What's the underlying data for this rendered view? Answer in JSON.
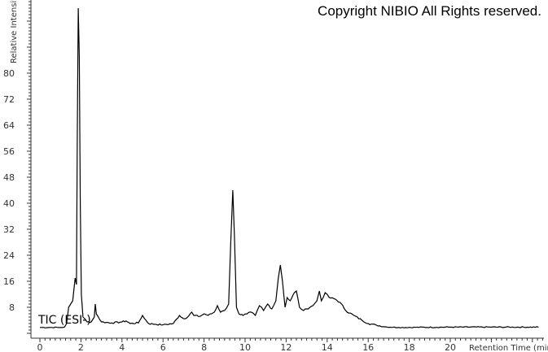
{
  "copyright": "Copyright NIBIO All Rights reserved.",
  "chart_data": {
    "type": "line",
    "title": "",
    "trace_label": "TIC (ESI-)",
    "xlabel": "Retention Time (min)",
    "ylabel": "Relative Intensity",
    "xlim": [
      0,
      24.5
    ],
    "ylim": [
      0,
      102
    ],
    "xticks": [
      0,
      2,
      4,
      6,
      8,
      10,
      12,
      14,
      16,
      18,
      20
    ],
    "yticks": [
      8,
      16,
      24,
      32,
      40,
      48,
      56,
      64,
      72,
      80
    ],
    "grid": false,
    "line_color": "#000000",
    "series": [
      {
        "x": [
          0,
          0.5,
          1.0,
          1.2,
          1.3,
          1.4,
          1.5,
          1.6,
          1.65,
          1.72,
          1.78,
          1.82,
          1.87,
          1.92,
          1.97,
          2.02,
          2.1,
          2.3,
          2.5,
          2.65,
          2.7,
          2.75,
          2.85,
          3.0,
          3.5,
          4.0,
          4.2,
          4.4,
          4.8,
          5.0,
          5.1,
          5.3,
          5.6,
          6.0,
          6.5,
          6.8,
          7.0,
          7.2,
          7.4,
          7.5,
          7.8,
          8.0,
          8.2,
          8.5,
          8.65,
          8.8,
          9.0,
          9.2,
          9.3,
          9.4,
          9.48,
          9.58,
          9.7,
          9.9,
          10.1,
          10.3,
          10.5,
          10.7,
          10.8,
          10.9,
          11.1,
          11.3,
          11.5,
          11.62,
          11.72,
          11.82,
          11.95,
          12.05,
          12.2,
          12.4,
          12.5,
          12.65,
          12.85,
          13.0,
          13.3,
          13.5,
          13.62,
          13.72,
          13.9,
          14.1,
          14.4,
          14.7,
          14.9,
          15.3,
          15.7,
          16.0,
          16.4,
          16.8,
          17.5,
          20,
          24.3
        ],
        "y": [
          1.8,
          1.8,
          1.8,
          1.9,
          3,
          8,
          9,
          10,
          13,
          17,
          15,
          60,
          100,
          85,
          40,
          12,
          5,
          3.5,
          3.5,
          5,
          9,
          6,
          5,
          3.5,
          3.2,
          3.5,
          3.8,
          3.0,
          3.2,
          5.5,
          4.5,
          3.0,
          2.8,
          2.6,
          3.0,
          5.5,
          4.5,
          5,
          6.5,
          5.5,
          5.2,
          6.0,
          5.5,
          6.5,
          8.5,
          6.5,
          7,
          9,
          28,
          44,
          30,
          8,
          6,
          5.5,
          6,
          6.5,
          5.5,
          8.5,
          8.0,
          7,
          9,
          7.5,
          10,
          17,
          21,
          16,
          8,
          11,
          10,
          12.5,
          13,
          8,
          7,
          7.5,
          8.5,
          10,
          13,
          10,
          12.5,
          11,
          10.5,
          9,
          7,
          5.5,
          4,
          3,
          2.5,
          2.0,
          1.8,
          1.9,
          1.9
        ]
      }
    ]
  }
}
